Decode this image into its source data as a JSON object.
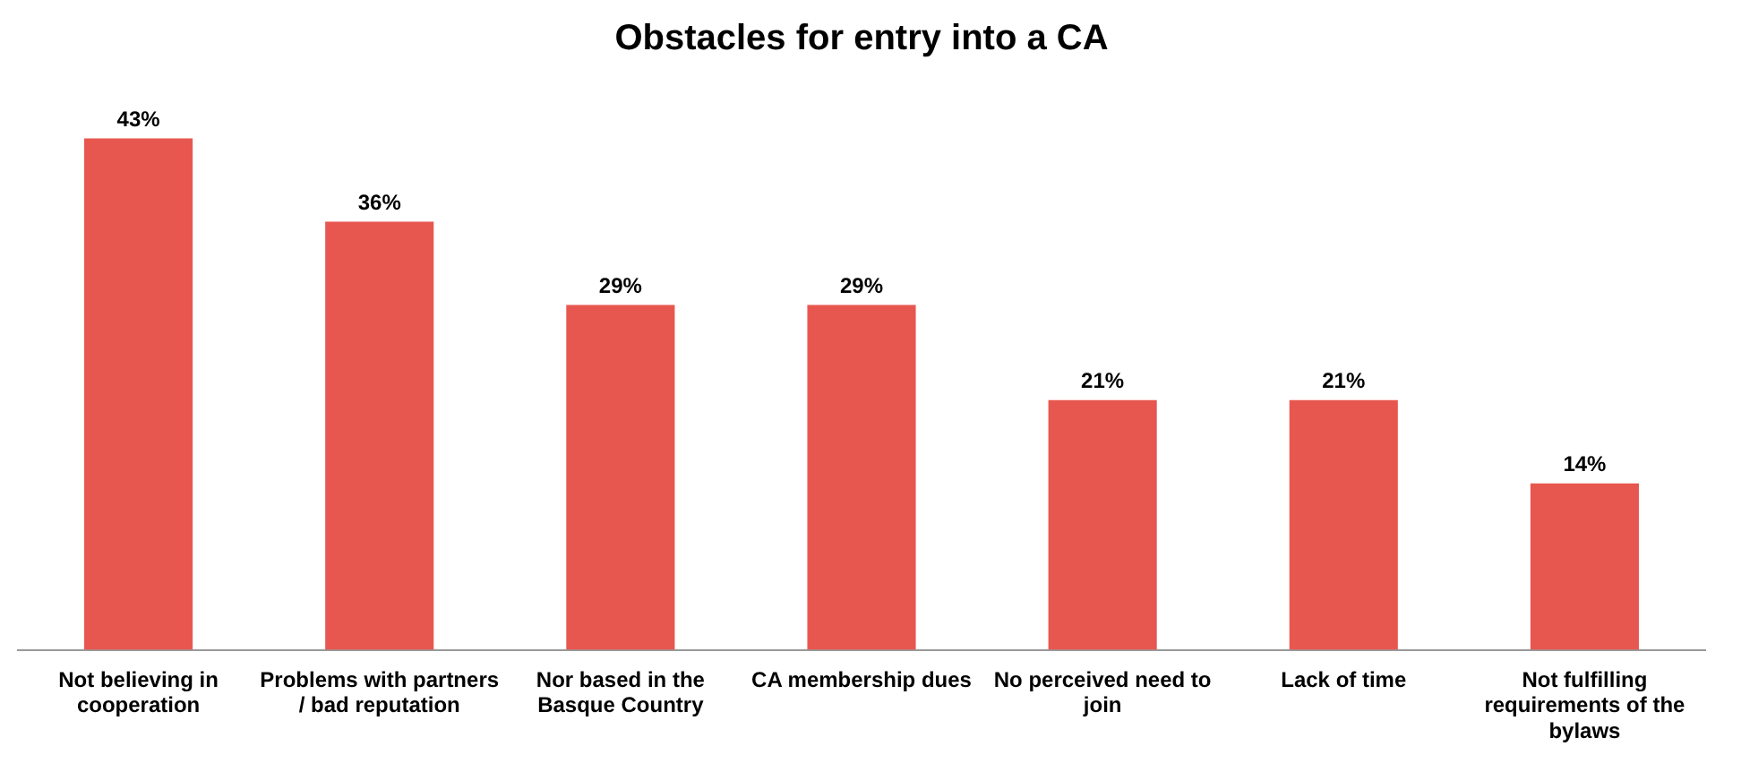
{
  "chart_data": {
    "type": "bar",
    "title": "Obstacles for entry into a CA",
    "categories": [
      "Not believing in cooperation",
      "Problems with partners / bad reputation",
      "Nor based in the Basque Country",
      "CA membership dues",
      "No perceived need to join",
      "Lack of time",
      "Not fulfilling requirements of the bylaws"
    ],
    "values": [
      43,
      36,
      29,
      29,
      21,
      21,
      14
    ],
    "value_labels": [
      "43%",
      "36%",
      "29%",
      "29%",
      "21%",
      "21%",
      "14%"
    ],
    "color": "#e8574f",
    "grid": false,
    "legend": false,
    "tick_labels": "x"
  }
}
